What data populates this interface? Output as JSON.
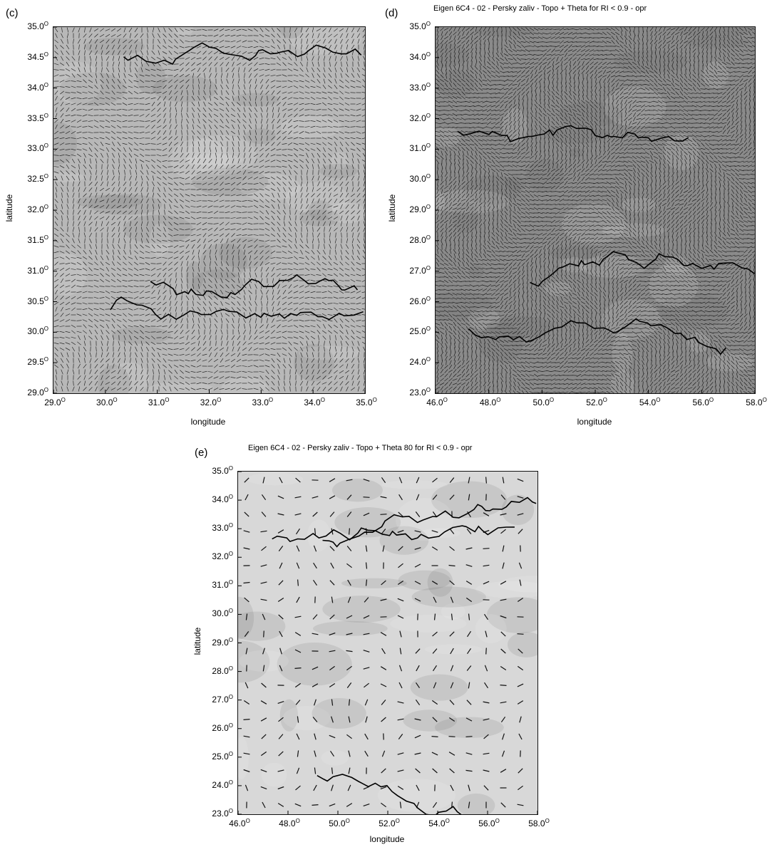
{
  "panels": [
    {
      "letter": "(c)",
      "title": "",
      "xlabel": "longitude",
      "ylabel": "latitude",
      "lat_ticks": [
        "35.0",
        "34.5",
        "34.0",
        "33.5",
        "33.0",
        "32.5",
        "32.0",
        "31.5",
        "31.0",
        "30.5",
        "30.0",
        "29.5",
        "29.0"
      ],
      "lon_ticks": [
        "29.0",
        "30.0",
        "31.0",
        "32.0",
        "33.0",
        "34.0",
        "35.0"
      ],
      "degree_symbol": "O",
      "lat_range": [
        29.0,
        35.0
      ],
      "lon_range": [
        29.0,
        35.0
      ],
      "shading": "medium",
      "stroke_density": "very high"
    },
    {
      "letter": "(d)",
      "title": "Eigen 6C4 - 02 - Persky zaliv - Topo + Theta for RI < 0.9 - opr",
      "xlabel": "longitude",
      "ylabel": "latitude",
      "lat_ticks": [
        "35.0",
        "34.0",
        "33.0",
        "32.0",
        "31.0",
        "30.0",
        "29.0",
        "28.0",
        "27.0",
        "26.0",
        "25.0",
        "24.0",
        "23.0"
      ],
      "lon_ticks": [
        "46.0",
        "48.0",
        "50.0",
        "52.0",
        "54.0",
        "56.0",
        "58.0"
      ],
      "degree_symbol": "O",
      "lat_range": [
        23.0,
        35.0
      ],
      "lon_range": [
        46.0,
        58.0
      ],
      "shading": "dark",
      "stroke_density": "extreme"
    },
    {
      "letter": "(e)",
      "title": "Eigen 6C4 - 02 - Persky zaliv - Topo + Theta 80 for RI < 0.9 - opr",
      "xlabel": "longitude",
      "ylabel": "latitude",
      "lat_ticks": [
        "35.0",
        "34.0",
        "33.0",
        "32.0",
        "31.0",
        "30.0",
        "29.0",
        "28.0",
        "27.0",
        "26.0",
        "25.0",
        "24.0",
        "23.0"
      ],
      "lon_ticks": [
        "46.0",
        "48.0",
        "50.0",
        "52.0",
        "54.0",
        "56.0",
        "58.0"
      ],
      "degree_symbol": "O",
      "lat_range": [
        23.0,
        35.0
      ],
      "lon_range": [
        46.0,
        58.0
      ],
      "shading": "light",
      "stroke_density": "sparse"
    }
  ],
  "colors": {
    "background": "#ffffff",
    "map_light": "#d8d8d8",
    "map_mid": "#b8b8b8",
    "map_dark": "#8a8a8a",
    "strokes": "#111111"
  }
}
